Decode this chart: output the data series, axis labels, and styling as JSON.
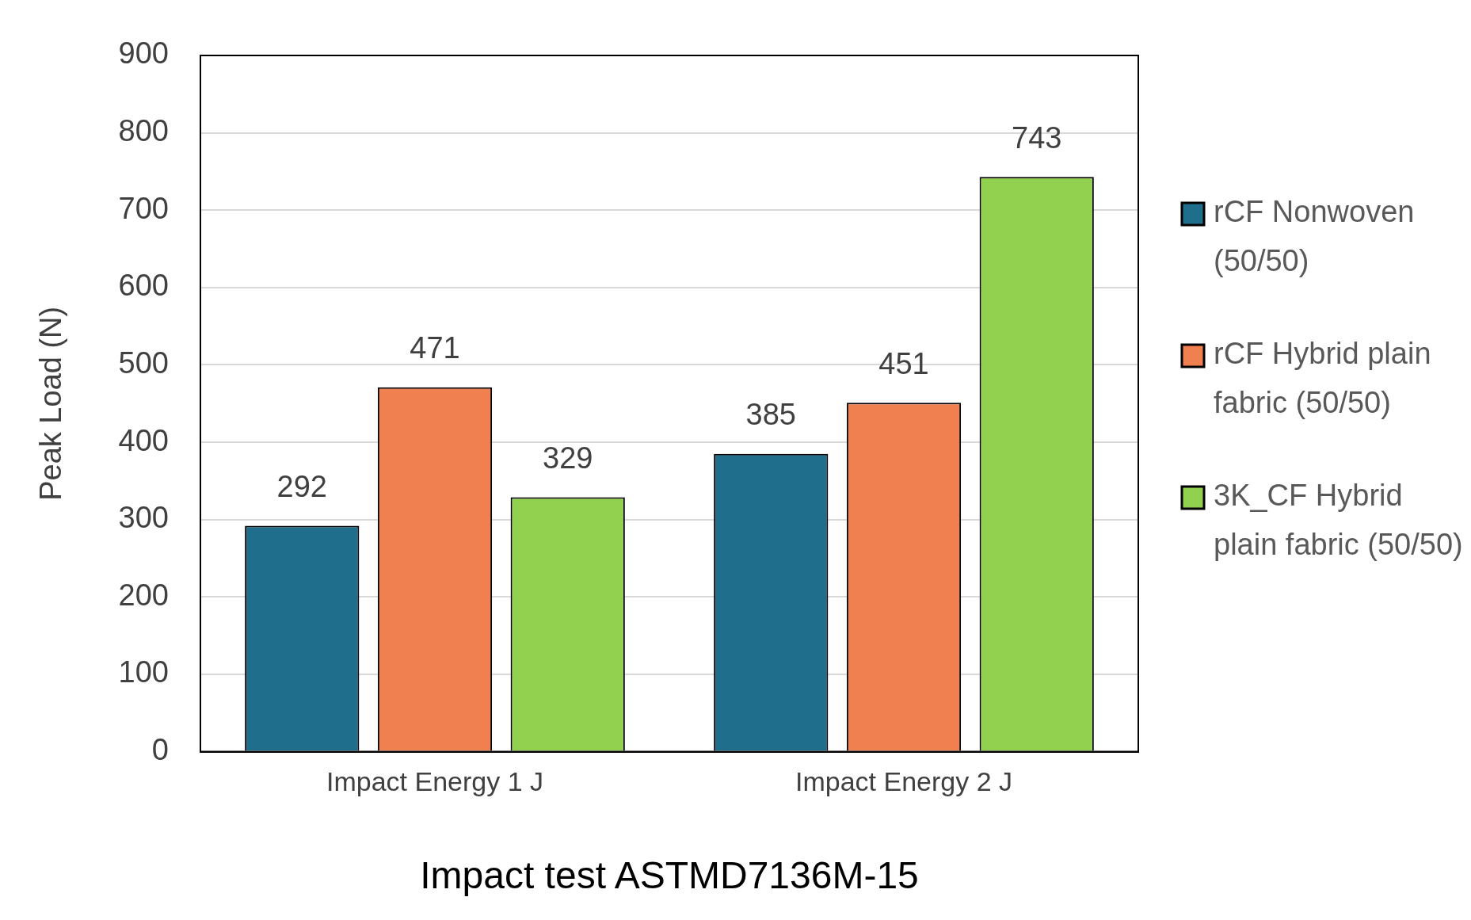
{
  "chart_data": {
    "type": "bar",
    "xlabel": "Impact test ASTMD7136M-15",
    "ylabel": "Peak Load (N)",
    "categories": [
      "Impact Energy 1 J",
      "Impact Energy 2 J"
    ],
    "series": [
      {
        "name": "rCF Nonwoven (50/50)",
        "color": "#1f6e8c",
        "values": [
          292,
          385
        ]
      },
      {
        "name": "rCF Hybrid plain fabric (50/50)",
        "color": "#f08050",
        "values": [
          471,
          451
        ]
      },
      {
        "name": "3K_CF Hybrid plain fabric (50/50)",
        "color": "#92d050",
        "values": [
          329,
          743
        ]
      }
    ],
    "ylim": [
      0,
      900
    ],
    "yticks": [
      0,
      100,
      200,
      300,
      400,
      500,
      600,
      700,
      800,
      900
    ],
    "grid": "y",
    "data_labels": true,
    "legend": "right"
  }
}
